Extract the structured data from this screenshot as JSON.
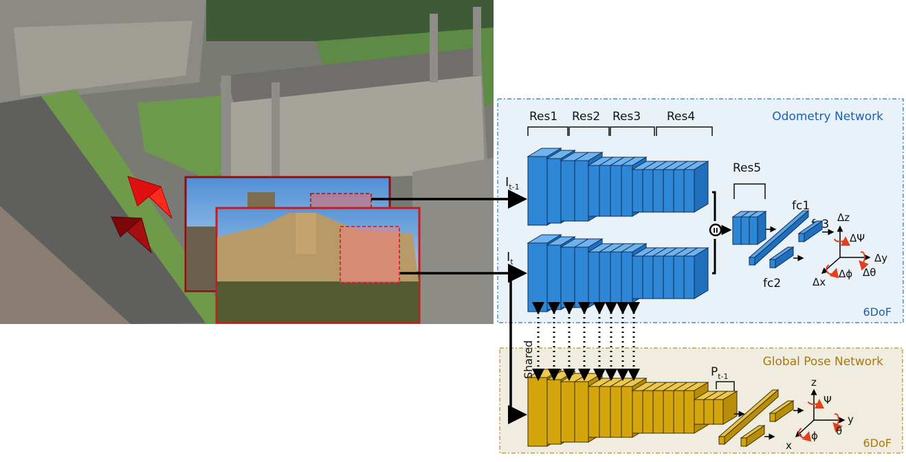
{
  "odometry": {
    "title": "Odometry Network",
    "dof": "6DoF",
    "res_labels": [
      "Res1",
      "Res2",
      "Res3",
      "Res4"
    ],
    "res5": "Res5",
    "input_prev": "I",
    "input_prev_sub": "t-1",
    "input_curr": "I",
    "input_curr_sub": "t",
    "fc1": "fc1",
    "fc2": "fc2",
    "fc3": "fc3",
    "axes": {
      "z": "Δz",
      "y": "Δy",
      "x": "Δx",
      "psi": "ΔΨ",
      "theta": "Δθ",
      "phi": "Δϕ"
    },
    "concat_symbol": "II"
  },
  "global": {
    "title": "Global Pose Network",
    "dof": "6DoF",
    "pose_prev": "P",
    "pose_prev_sub": "t-1",
    "shared": "Shared",
    "axes": {
      "z": "z",
      "y": "y",
      "x": "x",
      "psi": "Ψ",
      "theta": "θ",
      "phi": "ϕ"
    }
  },
  "colors": {
    "odometry_block": "#2e86d6",
    "global_block": "#d4a50c",
    "odometry_title": "#1a5fb4",
    "global_title": "#a57a0b",
    "odometry_bg": "#e9f2f9",
    "global_bg": "#f1ece0",
    "frame_red": "#d01818",
    "frame_dark_red": "#8e1010"
  }
}
